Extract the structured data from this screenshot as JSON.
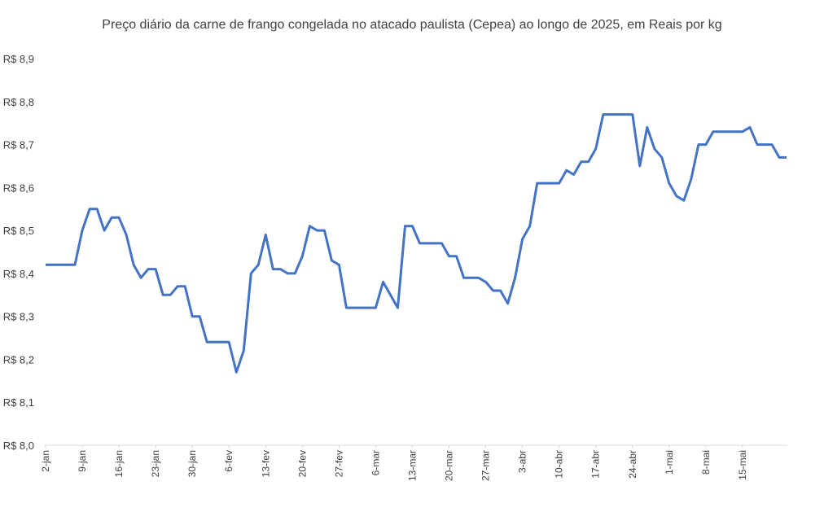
{
  "chart_data": {
    "type": "line",
    "title": "Preço diário da carne de frango congelada no atacado paulista (Cepea) ao longo de 2025, em Reais por kg",
    "xlabel": "",
    "ylabel": "",
    "ylim": [
      8.0,
      8.9
    ],
    "yticks": [
      "R$ 8,0",
      "R$ 8,1",
      "R$ 8,2",
      "R$ 8,3",
      "R$ 8,4",
      "R$ 8,5",
      "R$ 8,6",
      "R$ 8,7",
      "R$ 8,8",
      "R$ 8,9"
    ],
    "xticks": [
      "2-jan",
      "9-jan",
      "16-jan",
      "23-jan",
      "30-jan",
      "6-fev",
      "13-fev",
      "20-fev",
      "27-fev",
      "6-mar",
      "13-mar",
      "20-mar",
      "27-mar",
      "3-abr",
      "10-abr",
      "17-abr",
      "24-abr",
      "1-mai",
      "8-mai",
      "15-mai"
    ],
    "grid": false,
    "legend": "none",
    "color": "#4472c4",
    "series": [
      {
        "values": [
          8.42,
          8.42,
          8.42,
          8.42,
          8.42,
          8.5,
          8.55,
          8.55,
          8.5,
          8.53,
          8.53,
          8.49,
          8.42,
          8.39,
          8.41,
          8.41,
          8.35,
          8.35,
          8.37,
          8.37,
          8.3,
          8.3,
          8.24,
          8.24,
          8.24,
          8.24,
          8.17,
          8.22,
          8.4,
          8.42,
          8.49,
          8.41,
          8.41,
          8.4,
          8.4,
          8.44,
          8.51,
          8.5,
          8.5,
          8.43,
          8.42,
          8.32,
          8.32,
          8.32,
          8.32,
          8.32,
          8.38,
          8.35,
          8.32,
          8.51,
          8.51,
          8.47,
          8.47,
          8.47,
          8.47,
          8.44,
          8.44,
          8.39,
          8.39,
          8.39,
          8.38,
          8.36,
          8.36,
          8.33,
          8.39,
          8.48,
          8.51,
          8.61,
          8.61,
          8.61,
          8.61,
          8.64,
          8.63,
          8.66,
          8.66,
          8.69,
          8.77,
          8.77,
          8.77,
          8.77,
          8.77,
          8.65,
          8.74,
          8.69,
          8.67,
          8.61,
          8.58,
          8.57,
          8.62,
          8.7,
          8.7,
          8.73,
          8.73,
          8.73,
          8.73,
          8.73,
          8.74,
          8.7,
          8.7,
          8.7,
          8.67,
          8.67
        ]
      }
    ]
  }
}
